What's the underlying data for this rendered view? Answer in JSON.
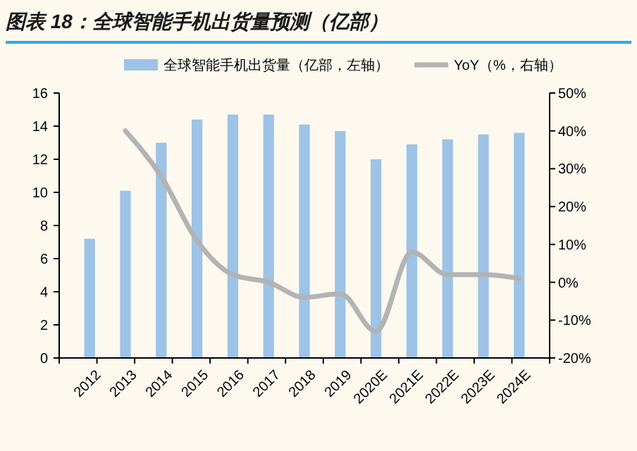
{
  "chart_data": {
    "type": "bar",
    "title": "图表 18：全球智能手机出货量预测（亿部）",
    "categories": [
      "2012",
      "2013",
      "2014",
      "2015",
      "2016",
      "2017",
      "2018",
      "2019",
      "2020E",
      "2021E",
      "2022E",
      "2023E",
      "2024E"
    ],
    "series": [
      {
        "name": "全球智能手机出货量（亿部，左轴）",
        "color": "#9dc3e6",
        "values": [
          7.2,
          10.1,
          13.0,
          14.4,
          14.7,
          14.7,
          14.1,
          13.7,
          12.0,
          12.9,
          13.2,
          13.5,
          13.6
        ]
      },
      {
        "name": "YoY（%，右轴）",
        "type": "line",
        "axis": "y2",
        "color": "#b3b3b3",
        "values": [
          null,
          40,
          28,
          11,
          2,
          0,
          -4,
          -3,
          -13,
          8,
          2,
          2,
          1
        ]
      }
    ],
    "ylim": [
      0,
      16
    ],
    "yticks": [
      0,
      2,
      4,
      6,
      8,
      10,
      12,
      14,
      16
    ],
    "y2lim": [
      -20,
      50
    ],
    "y2ticks": [
      {
        "value": -20,
        "label": "-20%"
      },
      {
        "value": -10,
        "label": "-10%"
      },
      {
        "value": 0,
        "label": "0%"
      },
      {
        "value": 10,
        "label": "10%"
      },
      {
        "value": 20,
        "label": "20%"
      },
      {
        "value": 30,
        "label": "30%"
      },
      {
        "value": 40,
        "label": "40%"
      },
      {
        "value": 50,
        "label": "50%"
      }
    ],
    "grid": false,
    "legend": "top",
    "marker": "none"
  }
}
